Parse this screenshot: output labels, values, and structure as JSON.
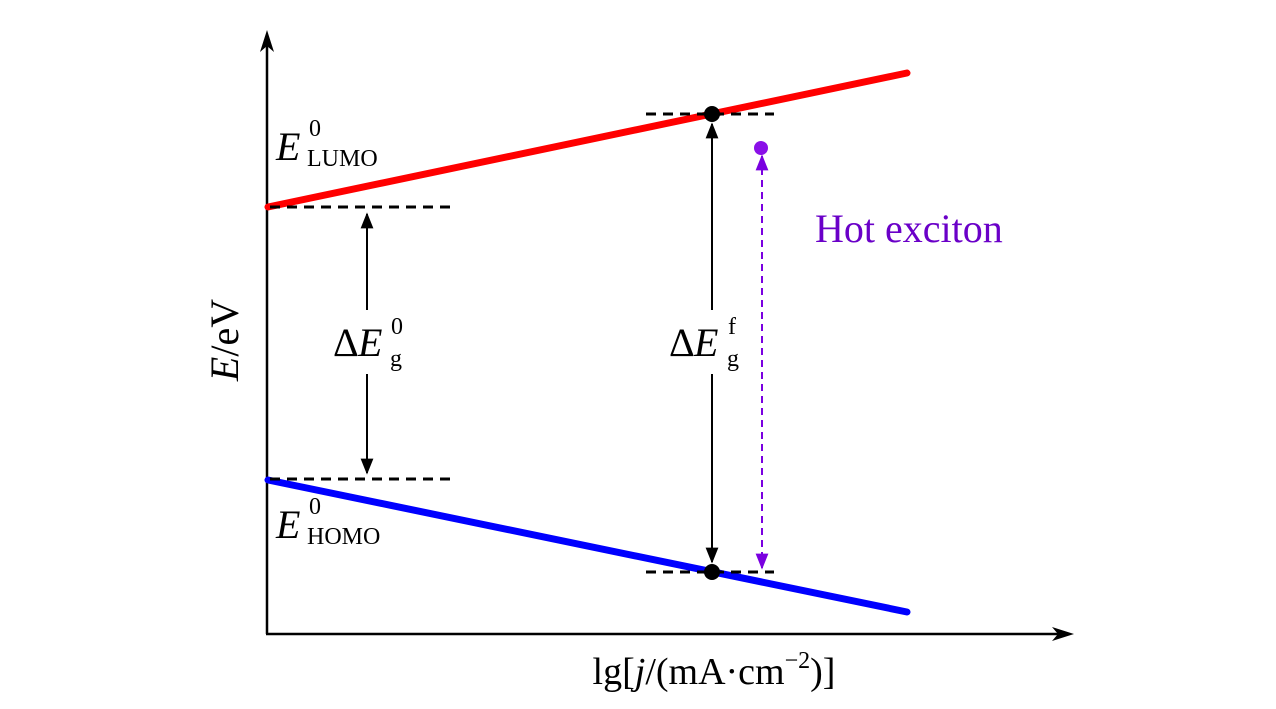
{
  "axes": {
    "y_label_italic": "E",
    "y_label_rest": "/eV",
    "x_label_prefix": "lg[",
    "x_label_var": "j",
    "x_label_mid": "/(mA·cm",
    "x_label_exp": "−2",
    "x_label_suffix": ")]"
  },
  "labels": {
    "lumo_main": "E",
    "lumo_sup": "0",
    "lumo_sub": "LUMO",
    "homo_main": "E",
    "homo_sup": "0",
    "homo_sub": "HOMO",
    "gap0_delta": "Δ",
    "gap0_main": "E",
    "gap0_sup": "0",
    "gap0_sub": "g",
    "gapf_delta": "Δ",
    "gapf_main": "E",
    "gapf_sup": "f",
    "gapf_sub": "g",
    "hot_exciton": "Hot exciton"
  },
  "colors": {
    "lumo_line": "#ff0000",
    "homo_line": "#0000ff",
    "hot_exciton": "#6a00c8",
    "axis": "#000000"
  }
}
